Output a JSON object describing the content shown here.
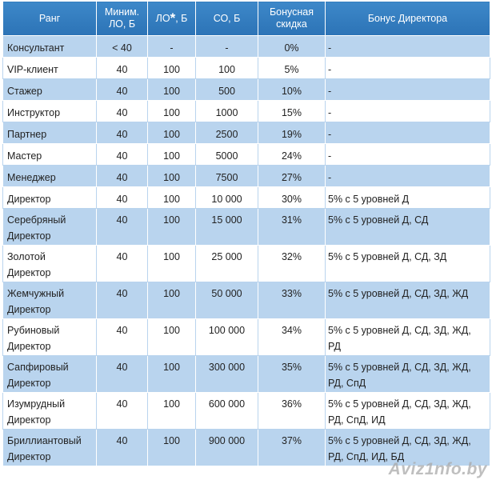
{
  "table": {
    "headers": {
      "rank": "Ранг",
      "min_lo_1": "Миним.",
      "min_lo_2": "ЛО, Б",
      "lo_pre": "ЛО",
      "lo_star": "*",
      "lo_post": ", Б",
      "co": "СО, Б",
      "bonus_1": "Бонусная",
      "bonus_2": "скидка",
      "director_bonus": "Бонус Директора"
    },
    "rows": [
      {
        "rank": "Консультант",
        "min_lo": "< 40",
        "lo": "-",
        "co": "-",
        "bonus": "0%",
        "director": "-"
      },
      {
        "rank": "VIP-клиент",
        "min_lo": "40",
        "lo": "100",
        "co": "100",
        "bonus": "5%",
        "director": "-"
      },
      {
        "rank": "Стажер",
        "min_lo": "40",
        "lo": "100",
        "co": "500",
        "bonus": "10%",
        "director": "-"
      },
      {
        "rank": "Инструктор",
        "min_lo": "40",
        "lo": "100",
        "co": "1000",
        "bonus": "15%",
        "director": "-"
      },
      {
        "rank": "Партнер",
        "min_lo": "40",
        "lo": "100",
        "co": "2500",
        "bonus": "19%",
        "director": "-"
      },
      {
        "rank": "Мастер",
        "min_lo": "40",
        "lo": "100",
        "co": "5000",
        "bonus": "24%",
        "director": "-"
      },
      {
        "rank": "Менеджер",
        "min_lo": "40",
        "lo": "100",
        "co": "7500",
        "bonus": "27%",
        "director": "-"
      },
      {
        "rank": "Директор",
        "min_lo": "40",
        "lo": "100",
        "co": "10 000",
        "bonus": "30%",
        "director": "5% с 5 уровней Д"
      },
      {
        "rank_1": "Серебряный",
        "rank_2": "Директор",
        "min_lo": "40",
        "lo": "100",
        "co": "15 000",
        "bonus": "31%",
        "director_1": "5% с 5 уровней Д, СД",
        "director_2": ""
      },
      {
        "rank_1": "Золотой",
        "rank_2": "Директор",
        "min_lo": "40",
        "lo": "100",
        "co": "25 000",
        "bonus": "32%",
        "director_1": "5% с 5 уровней Д, СД, ЗД",
        "director_2": ""
      },
      {
        "rank_1": "Жемчужный",
        "rank_2": "Директор",
        "min_lo": "40",
        "lo": "100",
        "co": "50 000",
        "bonus": "33%",
        "director_1": "5% с 5 уровней Д, СД, ЗД, ЖД",
        "director_2": ""
      },
      {
        "rank_1": "Рубиновый",
        "rank_2": "Директор",
        "min_lo": "40",
        "lo": "100",
        "co": "100 000",
        "bonus": "34%",
        "director_1": "5% с 5 уровней Д, СД, ЗД, ЖД,",
        "director_2": "РД"
      },
      {
        "rank_1": "Сапфировый",
        "rank_2": "Директор",
        "min_lo": "40",
        "lo": "100",
        "co": "300 000",
        "bonus": "35%",
        "director_1": "5% с 5 уровней Д, СД, ЗД, ЖД,",
        "director_2": "РД, СпД"
      },
      {
        "rank_1": "Изумрудный",
        "rank_2": "Директор",
        "min_lo": "40",
        "lo": "100",
        "co": "600 000",
        "bonus": "36%",
        "director_1": "5% с 5 уровней Д, СД, ЗД, ЖД,",
        "director_2": "РД, СпД, ИД"
      },
      {
        "rank_1": "Бриллиантовый",
        "rank_2": "Директор",
        "min_lo": "40",
        "lo": "100",
        "co": "900 000",
        "bonus": "37%",
        "director_1": "5% с 5 уровней Д, СД, ЗД, ЖД,",
        "director_2": "РД, СпД, ИД, БД"
      }
    ]
  },
  "watermark": "Aviz1nfo.by",
  "colors": {
    "header_bg": "#2f78ba",
    "row_blue": "#b9d4ee",
    "row_white": "#ffffff"
  }
}
